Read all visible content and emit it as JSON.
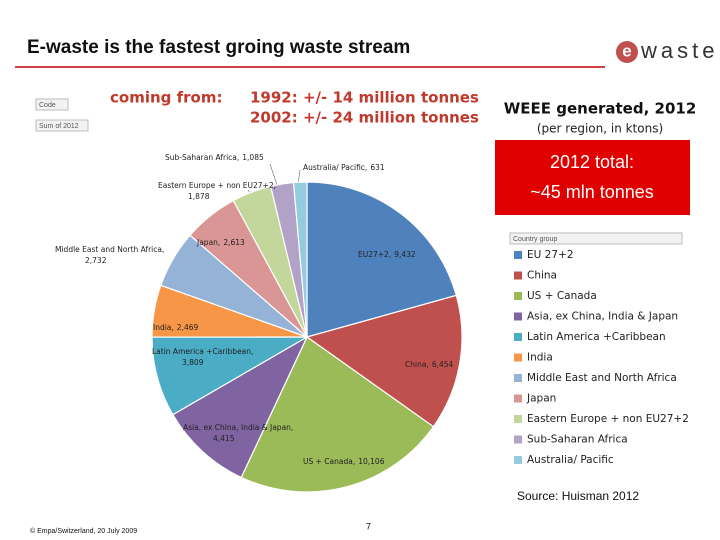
{
  "header": {
    "title": "E-waste is the fastest groing waste stream",
    "logo_e": "e",
    "logo_rest": "waste"
  },
  "history": {
    "heading": "coming from:",
    "lines": [
      "1992: +/- 14 million tonnes",
      "2002: +/- 24 million tonnes"
    ]
  },
  "filters": {
    "code": "Code",
    "sum": "Sum of 2012",
    "group": "Country group"
  },
  "total_box": {
    "line1": "2012 total:",
    "line2": "~45 mln tonnes"
  },
  "source": "Source: Huisman 2012",
  "footer": {
    "copyright": "© Empa/Switzerland, 20 July 2009",
    "page": "7"
  },
  "chart_data": {
    "type": "pie",
    "title": "WEEE generated, 2012",
    "subtitle": "(per region, in ktons)",
    "categories": [
      "EU 27+2",
      "China",
      "US + Canada",
      "Asia, ex China, India & Japan",
      "Latin America +Caribbean",
      "India",
      "Middle East and North Africa",
      "Japan",
      "Eastern Europe + non EU27+2",
      "Sub-Saharan Africa",
      "Australia/ Pacific"
    ],
    "slice_labels": [
      "EU27+2,",
      "China,",
      "US + Canada,",
      "Asia, ex China, India & Japan,",
      "Latin America +Caribbean,",
      "India,",
      "Middle East and North Africa,",
      "Japan,",
      "Eastern Europe + non EU27+2,",
      "Sub-Saharan Africa,",
      "Australia/ Pacific,"
    ],
    "values": [
      9432,
      6454,
      10106,
      4415,
      3809,
      2469,
      2732,
      2613,
      1878,
      1085,
      631
    ],
    "value_labels": [
      "9,432",
      "6,454",
      "10,106",
      "4,415",
      "3,809",
      "2,469",
      "2,732",
      "2,613",
      "1,878",
      "1,085",
      "631"
    ],
    "colors": [
      "#4f81bd",
      "#c0504d",
      "#9bbb59",
      "#8064a2",
      "#4bacc6",
      "#f79646",
      "#95b3d7",
      "#d99694",
      "#c3d69b",
      "#b3a2c7",
      "#93cddd"
    ],
    "legend": "right"
  }
}
